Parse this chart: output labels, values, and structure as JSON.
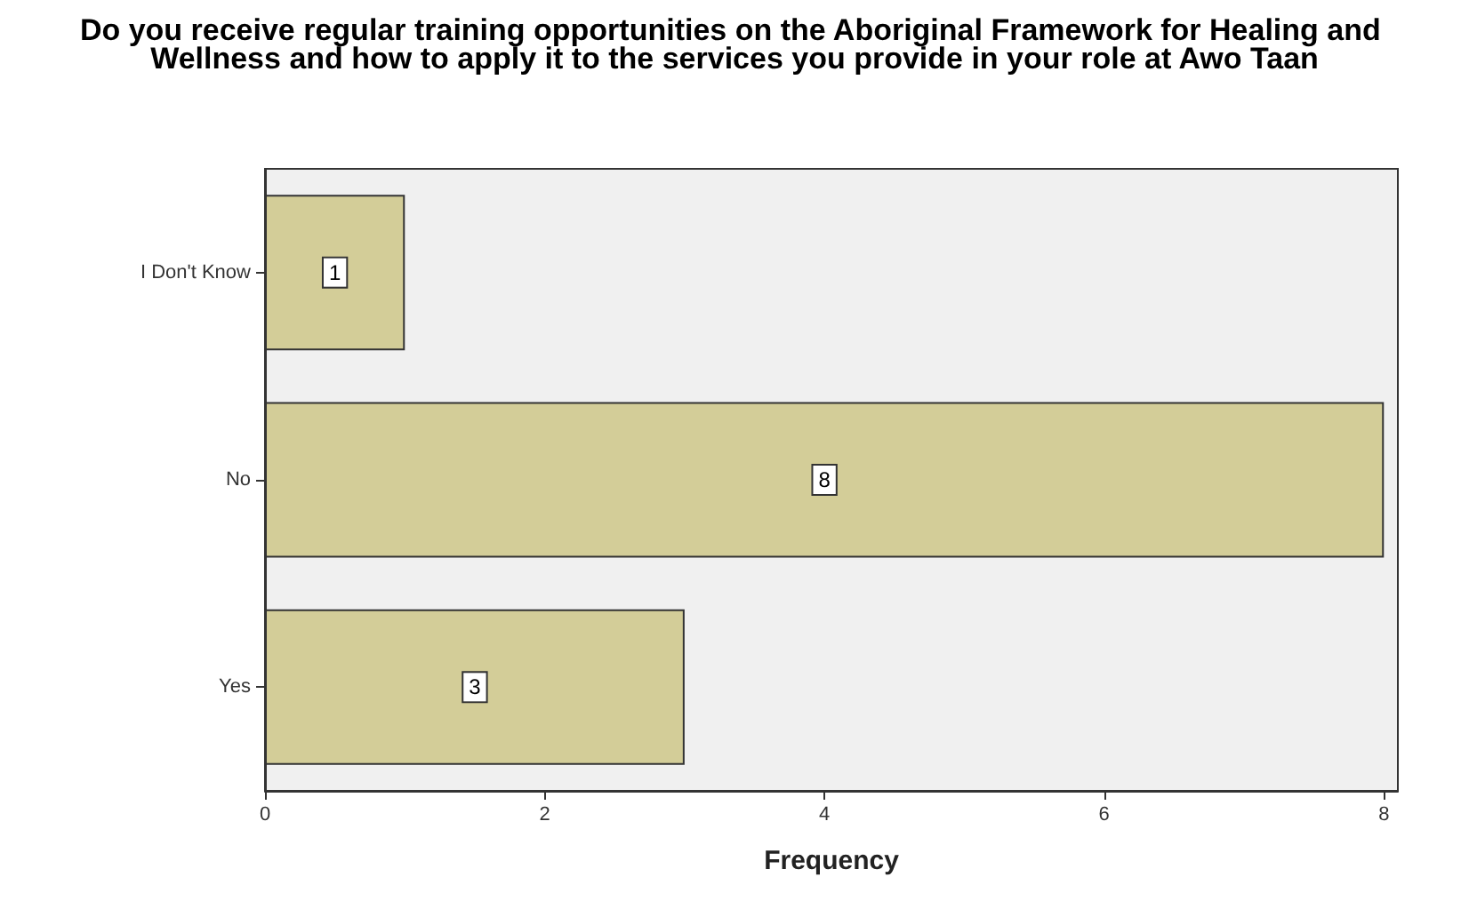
{
  "chart_data": {
    "type": "bar",
    "orientation": "horizontal",
    "title": "Do you receive regular training opportunities on the Aboriginal Framework for Healing and Wellness and how to apply it to the services you provide in your role at Awo Taan",
    "categories": [
      "I Don't Know",
      "No",
      "Yes"
    ],
    "values": [
      1,
      8,
      3
    ],
    "color": "#d3cd98",
    "xlabel": "Frequency",
    "xlim": [
      0,
      8.1
    ],
    "xticks": [
      0,
      2,
      4,
      6,
      8
    ],
    "data_labels": true
  }
}
